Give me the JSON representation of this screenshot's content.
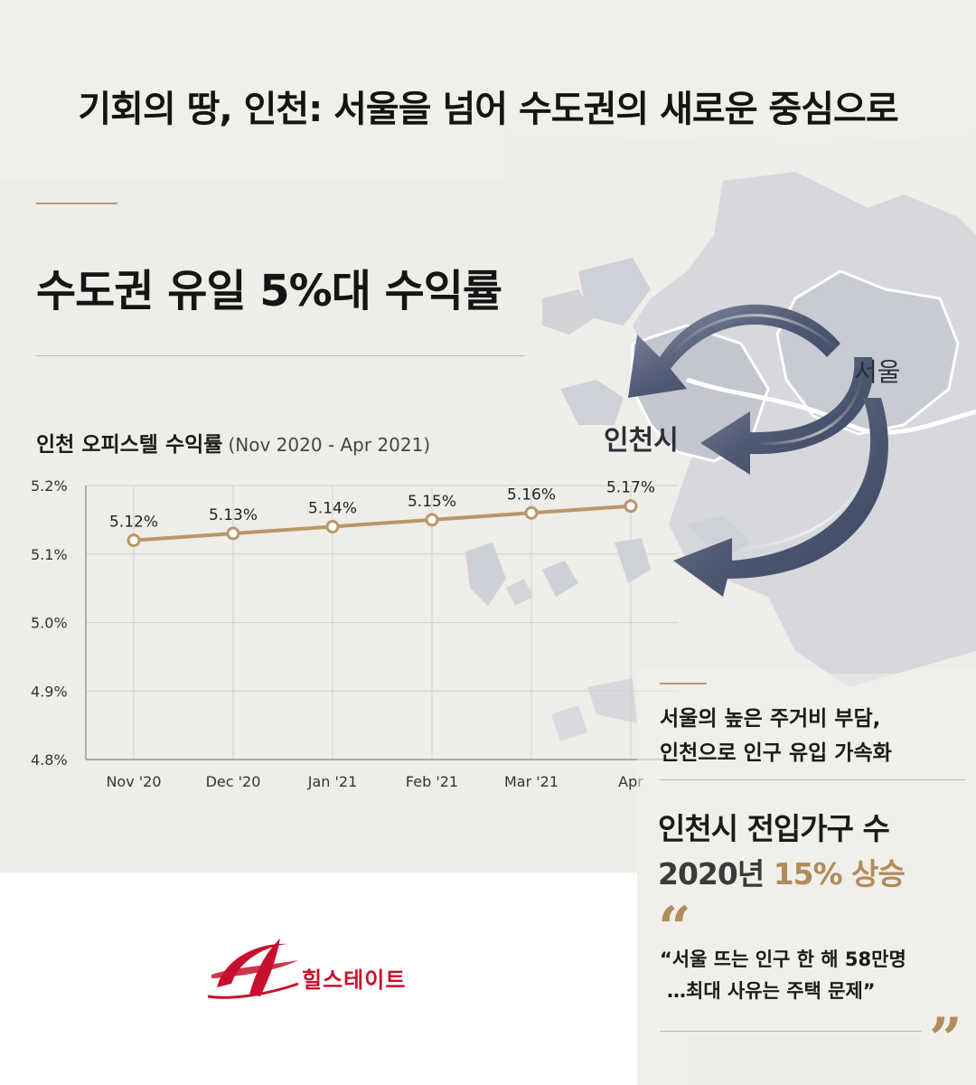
{
  "header": {
    "title": "기회의 땅, 인천: 서울을 넘어 수도권의 새로운 중심으로"
  },
  "section": {
    "title": "수도권 유일 5%대 수익률"
  },
  "chart": {
    "title": "인천 오피스텔 수익률",
    "subtitle": "(Nov 2020 - Apr 2021)"
  },
  "chart_data": {
    "type": "line",
    "categories": [
      "Nov '20",
      "Dec '20",
      "Jan '21",
      "Feb '21",
      "Mar '21",
      "Apr"
    ],
    "series": [
      {
        "name": "",
        "values": [
          5.12,
          5.13,
          5.14,
          5.15,
          5.16,
          5.17
        ],
        "labels": [
          "5.12%",
          "5.13%",
          "5.14%",
          "5.15%",
          "5.16%",
          "5.17%"
        ]
      }
    ],
    "yticks": [
      "5.2%",
      "5.1%",
      "5.0%",
      "4.9%",
      "4.8%"
    ],
    "ytick_values": [
      5.2,
      5.1,
      5.0,
      4.9,
      4.8
    ],
    "ylim": [
      4.8,
      5.2
    ],
    "grid": true,
    "line_color": "#b8976a"
  },
  "map": {
    "seoul_label": "서울",
    "incheon_label": "인천시"
  },
  "panel": {
    "line1": "서울의 높은 주거비 부담,",
    "line2": "인천으로 인구 유입 가속화",
    "stat_line1": "인천시 전입가구 수",
    "stat_line2_prefix": "2020년 ",
    "stat_line2_highlight": "15% 상승",
    "open_quote": "“",
    "close_quote": "”",
    "quote_line1": "“서울 뜨는 인구 한 해 58만명",
    "quote_line2": "…최대 사유는 주택 문제”"
  },
  "logo": {
    "text": "힐스테이트",
    "accent_color": "#c8102e"
  }
}
